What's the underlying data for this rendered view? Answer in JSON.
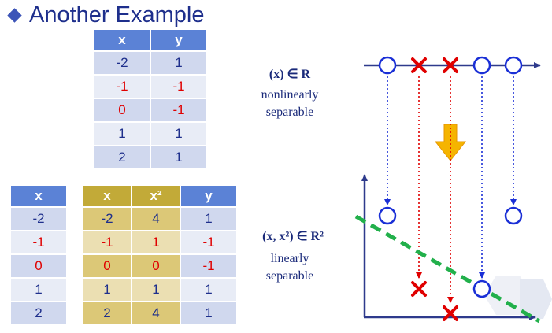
{
  "title": "Another Example",
  "table1": {
    "headers": [
      "x",
      "y"
    ],
    "rows": [
      {
        "x": "-2",
        "y": "1",
        "cls": "pos"
      },
      {
        "x": "-1",
        "y": "-1",
        "cls": "neg"
      },
      {
        "x": "0",
        "y": "-1",
        "cls": "neg"
      },
      {
        "x": "1",
        "y": "1",
        "cls": "pos"
      },
      {
        "x": "2",
        "y": "1",
        "cls": "pos"
      }
    ]
  },
  "table2": {
    "x_header": "x",
    "x": [
      {
        "v": "-2",
        "cls": "pos"
      },
      {
        "v": "-1",
        "cls": "neg"
      },
      {
        "v": "0",
        "cls": "neg"
      },
      {
        "v": "1",
        "cls": "pos"
      },
      {
        "v": "2",
        "cls": "pos"
      }
    ],
    "mapped_headers": [
      "x",
      "x²",
      "y"
    ],
    "mapped_rows": [
      {
        "x": "-2",
        "x2": "4",
        "y": "1",
        "cls": "pos"
      },
      {
        "x": "-1",
        "x2": "1",
        "y": "-1",
        "cls": "neg"
      },
      {
        "x": "0",
        "x2": "0",
        "y": "-1",
        "cls": "neg"
      },
      {
        "x": "1",
        "x2": "1",
        "y": "1",
        "cls": "pos"
      },
      {
        "x": "2",
        "x2": "4",
        "y": "1",
        "cls": "pos"
      }
    ]
  },
  "labels": {
    "space1": "(x) ∈ R",
    "space1_desc": [
      "nonlinearly",
      "separable"
    ],
    "space2": "(x, x²) ∈ R²",
    "space2_desc": [
      "linearly",
      "separable"
    ]
  },
  "colors": {
    "positive": "#1e2f8c",
    "negative": "#e00000",
    "axis": "#2e3a8c",
    "circle": "#1a2fd6",
    "separator": "#22b04b",
    "arrow": "#f5b400"
  },
  "chart_data": {
    "points_1d": [
      {
        "x": -2,
        "y": 1
      },
      {
        "x": -1,
        "y": -1
      },
      {
        "x": 0,
        "y": -1
      },
      {
        "x": 1,
        "y": 1
      },
      {
        "x": 2,
        "y": 1
      }
    ],
    "points_2d": [
      {
        "x": -2,
        "x2": 4,
        "y": 1
      },
      {
        "x": -1,
        "x2": 1,
        "y": -1
      },
      {
        "x": 0,
        "x2": 0,
        "y": -1
      },
      {
        "x": 1,
        "x2": 1,
        "y": 1
      },
      {
        "x": 2,
        "x2": 4,
        "y": 1
      }
    ],
    "markers": {
      "positive": "circle",
      "negative": "cross"
    }
  }
}
